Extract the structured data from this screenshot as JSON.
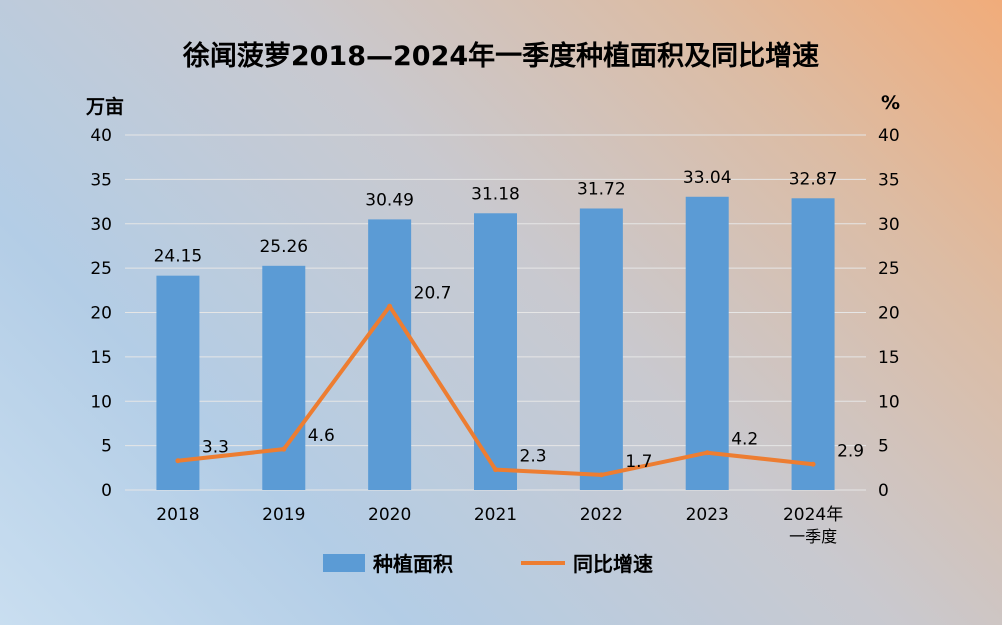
{
  "chart_data": {
    "type": "bar",
    "title": "徐闻菠萝2018—2024年一季度种植面积及同比增速",
    "left_unit": "万亩",
    "right_unit": "%",
    "categories": [
      "2018",
      "2019",
      "2020",
      "2021",
      "2022",
      "2023",
      "2024年\n一季度"
    ],
    "series": [
      {
        "name": "种植面积",
        "type": "bar",
        "axis": "left",
        "color": "#5b9bd5",
        "values": [
          24.15,
          25.26,
          30.49,
          31.18,
          31.72,
          33.04,
          32.87
        ],
        "labels": [
          "24.15",
          "25.26",
          "30.49",
          "31.18",
          "31.72",
          "33.04",
          "32.87"
        ]
      },
      {
        "name": "同比增速",
        "type": "line",
        "axis": "right",
        "color": "#ed7d31",
        "values": [
          3.3,
          4.6,
          20.7,
          2.3,
          1.7,
          4.2,
          2.9
        ],
        "labels": [
          "3.3",
          "4.6",
          "20.7",
          "2.3",
          "1.7",
          "4.2",
          "2.9"
        ]
      }
    ],
    "ylim": [
      0,
      40
    ],
    "yticks": [
      "0",
      "5",
      "10",
      "15",
      "20",
      "25",
      "30",
      "35",
      "40"
    ],
    "grid": true,
    "legend": "bottom"
  }
}
